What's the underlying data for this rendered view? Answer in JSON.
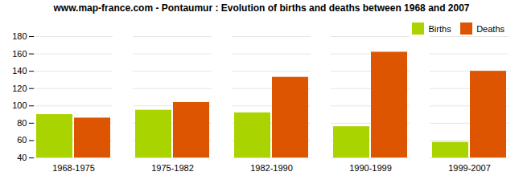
{
  "chart_data": {
    "type": "bar",
    "title": "www.map-france.com - Pontaumur : Evolution of births and deaths between 1968 and 2007",
    "categories": [
      "1968-1975",
      "1975-1982",
      "1982-1990",
      "1990-1999",
      "1999-2007"
    ],
    "series": [
      {
        "name": "Births",
        "color": "#aad400",
        "values": [
          90,
          95,
          92,
          76,
          58
        ]
      },
      {
        "name": "Deaths",
        "color": "#dd5500",
        "values": [
          86,
          104,
          133,
          162,
          140
        ]
      }
    ],
    "ylim": [
      40,
      180
    ],
    "yticks": [
      40,
      60,
      80,
      100,
      120,
      140,
      160,
      180
    ],
    "grid": true,
    "legend": "upper right"
  }
}
